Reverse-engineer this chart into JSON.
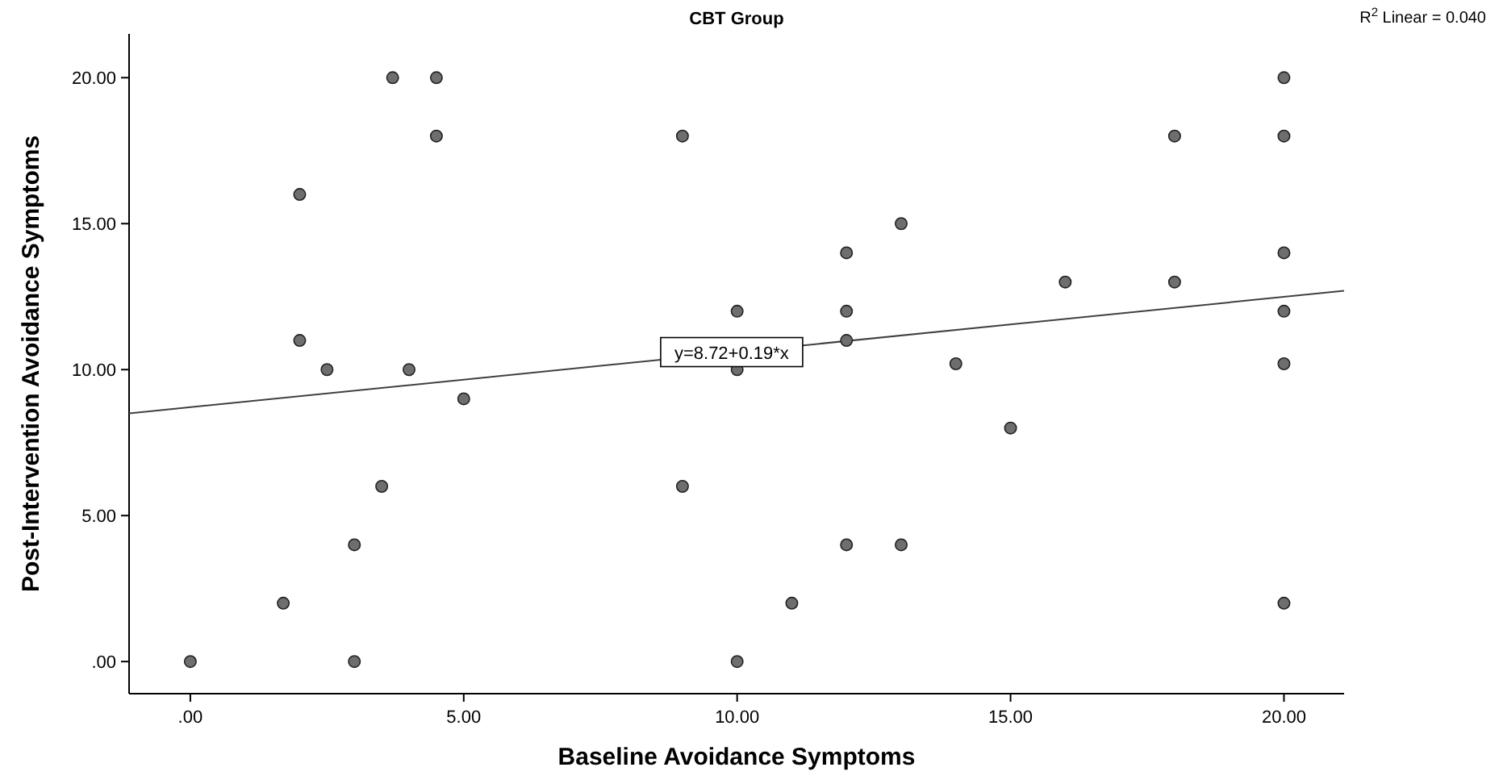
{
  "chart_data": {
    "type": "scatter",
    "title": "CBT Group",
    "xlabel": "Baseline Avoidance Symptoms",
    "ylabel": "Post-Intervention Avoidance Symptoms",
    "xlim": [
      -1.12,
      21.1
    ],
    "ylim": [
      -1.1,
      21.5
    ],
    "xticks": [
      {
        "value": 0,
        "label": ".00"
      },
      {
        "value": 5,
        "label": "5.00"
      },
      {
        "value": 10,
        "label": "10.00"
      },
      {
        "value": 15,
        "label": "15.00"
      },
      {
        "value": 20,
        "label": "20.00"
      }
    ],
    "yticks": [
      {
        "value": 0,
        "label": ".00"
      },
      {
        "value": 5,
        "label": "5.00"
      },
      {
        "value": 10,
        "label": "10.00"
      },
      {
        "value": 15,
        "label": "15.00"
      },
      {
        "value": 20,
        "label": "20.00"
      }
    ],
    "grid": false,
    "series": [
      {
        "type": "scatter",
        "color": "#6e6e6e",
        "marker": "circle",
        "x": [
          0,
          1.7,
          2,
          2,
          2.5,
          3,
          3,
          3.5,
          3.7,
          4,
          4.5,
          4.5,
          5,
          9,
          9,
          10,
          10,
          10,
          11,
          12,
          12,
          12,
          12,
          13,
          13,
          14,
          15,
          16,
          18,
          18,
          20,
          20,
          20,
          20,
          20,
          20
        ],
        "values": [
          0,
          2,
          16,
          11,
          10,
          0,
          4,
          6,
          20,
          10,
          20,
          18,
          9,
          18,
          6,
          12,
          10,
          0,
          2,
          14,
          12,
          11,
          4,
          15,
          4,
          10.2,
          8,
          13,
          18,
          13,
          20,
          18,
          14,
          12,
          10.2,
          2
        ]
      },
      {
        "type": "line",
        "color": "#404040",
        "line_style": "solid",
        "x": [
          -1.12,
          21.1
        ],
        "values": [
          8.5,
          12.7
        ]
      }
    ],
    "annotations": [
      {
        "text": "y=8.72+0.19*x",
        "x": 9.9,
        "y": 10.6
      },
      "R$^{2}$ Linear = 0.040"
    ]
  }
}
